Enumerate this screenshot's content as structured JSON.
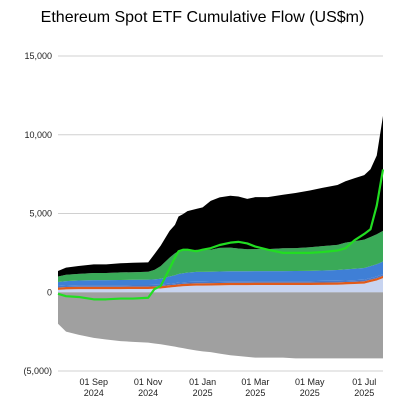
{
  "chart_data": {
    "type": "area",
    "title": "Ethereum Spot ETF Cumulative Flow (US$m)",
    "xlabel": "",
    "ylabel": "",
    "ylim": [
      -5000,
      15000
    ],
    "yticks": [
      15000,
      10000,
      5000,
      0,
      -5000
    ],
    "ytick_labels": [
      "15,000",
      "10,000",
      "5,000",
      "0",
      "(5,000)"
    ],
    "xlim": [
      "2024-07-23",
      "2025-07-22"
    ],
    "xticks": [
      {
        "date": "2024-09-01",
        "line1": "01 Sep",
        "line2": "2024"
      },
      {
        "date": "2024-11-01",
        "line1": "01 Nov",
        "line2": "2024"
      },
      {
        "date": "2025-01-01",
        "line1": "01 Jan",
        "line2": "2025"
      },
      {
        "date": "2025-03-01",
        "line1": "01 Mar",
        "line2": "2025"
      },
      {
        "date": "2025-05-01",
        "line1": "01 May",
        "line2": "2025"
      },
      {
        "date": "2025-07-01",
        "line1": "01 Jul",
        "line2": "2025"
      }
    ],
    "grid": true,
    "dates": [
      "2024-07-23",
      "2024-08-01",
      "2024-08-15",
      "2024-09-01",
      "2024-09-15",
      "2024-10-01",
      "2024-10-15",
      "2024-11-01",
      "2024-11-08",
      "2024-11-15",
      "2024-11-25",
      "2024-12-01",
      "2024-12-05",
      "2024-12-10",
      "2024-12-15",
      "2024-12-25",
      "2025-01-01",
      "2025-01-10",
      "2025-01-20",
      "2025-02-01",
      "2025-02-10",
      "2025-02-20",
      "2025-03-01",
      "2025-03-15",
      "2025-04-01",
      "2025-04-15",
      "2025-05-01",
      "2025-05-15",
      "2025-06-01",
      "2025-06-10",
      "2025-06-20",
      "2025-07-01",
      "2025-07-08",
      "2025-07-15",
      "2025-07-22"
    ],
    "series": [
      {
        "color": "#a0a0a0",
        "values": [
          -2000,
          -2500,
          -2700,
          -2900,
          -3000,
          -3100,
          -3150,
          -3200,
          -3250,
          -3300,
          -3400,
          -3450,
          -3500,
          -3550,
          -3600,
          -3700,
          -3750,
          -3800,
          -3900,
          -4000,
          -4050,
          -4100,
          -4150,
          -4150,
          -4150,
          -4200,
          -4200,
          -4200,
          -4200,
          -4200,
          -4200,
          -4200,
          -4200,
          -4200,
          -4200
        ]
      },
      {
        "color": "#c8d4f0",
        "values": [
          150,
          180,
          200,
          200,
          200,
          200,
          210,
          210,
          220,
          240,
          300,
          330,
          360,
          380,
          400,
          420,
          420,
          430,
          440,
          450,
          450,
          450,
          460,
          460,
          460,
          460,
          460,
          470,
          480,
          500,
          520,
          550,
          650,
          750,
          900
        ]
      },
      {
        "color": "#e05a1a",
        "values": [
          150,
          150,
          150,
          150,
          150,
          150,
          150,
          150,
          150,
          150,
          150,
          150,
          150,
          150,
          150,
          150,
          150,
          150,
          150,
          150,
          150,
          150,
          150,
          150,
          150,
          150,
          150,
          150,
          150,
          150,
          150,
          150,
          150,
          150,
          150
        ]
      },
      {
        "color": "#4a78c8",
        "values": [
          100,
          100,
          100,
          100,
          100,
          100,
          100,
          100,
          100,
          100,
          100,
          100,
          100,
          100,
          100,
          100,
          100,
          100,
          100,
          100,
          100,
          100,
          100,
          100,
          100,
          100,
          100,
          100,
          100,
          100,
          100,
          100,
          100,
          100,
          100
        ]
      },
      {
        "color": "#3f7fd6",
        "values": [
          250,
          280,
          300,
          320,
          320,
          330,
          330,
          340,
          350,
          370,
          450,
          500,
          550,
          580,
          600,
          620,
          620,
          620,
          630,
          630,
          630,
          630,
          630,
          630,
          630,
          640,
          650,
          660,
          680,
          700,
          720,
          740,
          760,
          780,
          800
        ]
      },
      {
        "color": "#3aaa58",
        "values": [
          350,
          400,
          420,
          450,
          450,
          480,
          480,
          500,
          600,
          800,
          1200,
          1400,
          1450,
          1450,
          1400,
          1400,
          1400,
          1400,
          1500,
          1500,
          1450,
          1400,
          1400,
          1400,
          1450,
          1450,
          1500,
          1550,
          1600,
          1700,
          1750,
          1800,
          1850,
          1900,
          1950
        ]
      },
      {
        "color": "#000000",
        "values": [
          350,
          450,
          500,
          550,
          550,
          580,
          600,
          600,
          1000,
          1300,
          1700,
          1800,
          2200,
          2300,
          2500,
          2600,
          2700,
          3100,
          3200,
          3300,
          3300,
          3200,
          3300,
          3300,
          3400,
          3500,
          3600,
          3700,
          3800,
          3900,
          4000,
          4100,
          4300,
          5000,
          7300
        ]
      }
    ],
    "net_flow_line": {
      "color": "#22dd22",
      "values": [
        -100,
        -250,
        -300,
        -450,
        -450,
        -400,
        -400,
        -350,
        200,
        400,
        1500,
        2200,
        2600,
        2700,
        2700,
        2600,
        2700,
        2800,
        3000,
        3150,
        3200,
        3100,
        2900,
        2700,
        2500,
        2500,
        2500,
        2550,
        2650,
        2800,
        3300,
        3700,
        4000,
        5500,
        7800
      ]
    }
  }
}
